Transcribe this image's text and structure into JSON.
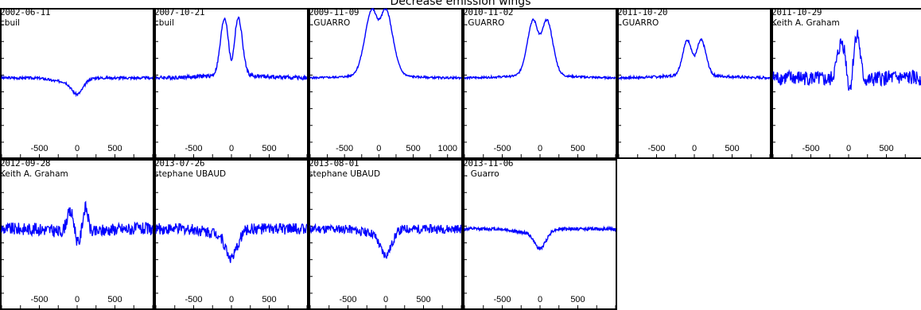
{
  "title": "Decrease emission wings",
  "colors": {
    "line": "#0000ff",
    "axis": "#000000",
    "background": "#ffffff"
  },
  "chart_data": [
    {
      "type": "line",
      "date": "2002-06-11",
      "observer": "cbuil",
      "x_tick_labels": [
        "-500",
        "0",
        "500"
      ],
      "xlim": [
        -1000,
        1000
      ],
      "profile": "absorption",
      "depth": 0.25,
      "peak": 0,
      "noise": 0.02
    },
    {
      "type": "line",
      "date": "2007-10-21",
      "observer": "cbuil",
      "x_tick_labels": [
        "-500",
        "0",
        "500"
      ],
      "xlim": [
        -1000,
        1000
      ],
      "profile": "double_peak",
      "peak": 0.9,
      "separation": 180,
      "width": 55,
      "dip": 0.25,
      "noise": 0.03
    },
    {
      "type": "line",
      "date": "2009-11-09",
      "observer": "J.GUARRO",
      "x_tick_labels": [
        "-500",
        "0",
        "500",
        "1000"
      ],
      "xlim": [
        -1000,
        1200
      ],
      "profile": "double_peak",
      "peak": 1.0,
      "separation": 180,
      "width": 110,
      "dip": 0.55,
      "noise": 0.015
    },
    {
      "type": "line",
      "date": "2010-11-02",
      "observer": "J.GUARRO",
      "x_tick_labels": [
        "-500",
        "0",
        "500"
      ],
      "xlim": [
        -1000,
        1000
      ],
      "profile": "double_peak",
      "peak": 0.85,
      "separation": 180,
      "width": 80,
      "dip": 0.3,
      "noise": 0.015
    },
    {
      "type": "line",
      "date": "2011-10-20",
      "observer": "J.GUARRO",
      "x_tick_labels": [
        "-500",
        "0",
        "500"
      ],
      "xlim": [
        -1000,
        1000
      ],
      "profile": "double_peak",
      "peak": 0.55,
      "separation": 180,
      "width": 65,
      "dip": 0.2,
      "noise": 0.02
    },
    {
      "type": "line",
      "date": "2011-10-29",
      "observer": "Keith A. Graham",
      "x_tick_labels": [
        "-500",
        "0",
        "500"
      ],
      "xlim": [
        -1000,
        1000
      ],
      "profile": "noisy_double",
      "peak": 0.65,
      "separation": 180,
      "width": 60,
      "dip": -0.4,
      "noise": 0.12
    },
    {
      "type": "line",
      "date": "2012-09-28",
      "observer": "Keith A. Graham",
      "x_tick_labels": [
        "-500",
        "0",
        "500"
      ],
      "xlim": [
        -1000,
        1000
      ],
      "profile": "noisy_double",
      "peak": 0.35,
      "separation": 180,
      "width": 50,
      "dip": -0.5,
      "noise": 0.1
    },
    {
      "type": "line",
      "date": "2013-07-26",
      "observer": "stephane UBAUD",
      "x_tick_labels": [
        "-500",
        "0",
        "500"
      ],
      "xlim": [
        -1000,
        1000
      ],
      "profile": "absorption_noisy",
      "depth": 0.45,
      "peak": 0,
      "noise": 0.09
    },
    {
      "type": "line",
      "date": "2013-08-01",
      "observer": "stephane UBAUD",
      "x_tick_labels": [
        "-500",
        "0",
        "500"
      ],
      "xlim": [
        -1000,
        1000
      ],
      "profile": "absorption_noisy",
      "depth": 0.4,
      "peak": 0,
      "noise": 0.07
    },
    {
      "type": "line",
      "date": "2013-11-06",
      "observer": "J. Guarro",
      "x_tick_labels": [
        "-500",
        "0",
        "500"
      ],
      "xlim": [
        -1000,
        1000
      ],
      "profile": "absorption",
      "depth": 0.3,
      "peak": 0,
      "noise": 0.025
    }
  ]
}
